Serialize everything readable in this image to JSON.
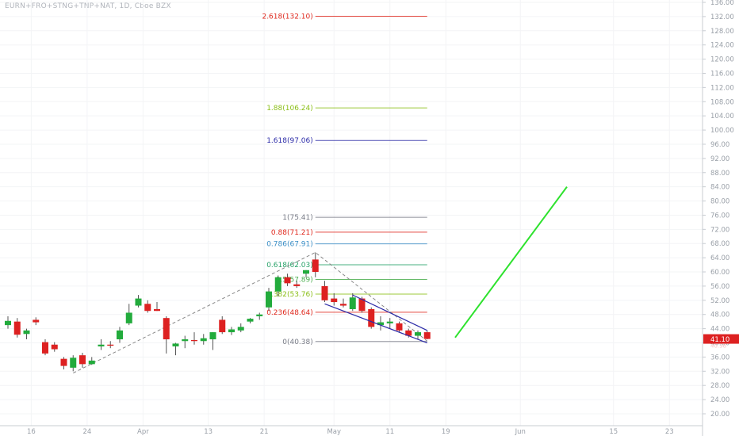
{
  "header": {
    "symbol": "EURN+FRO+STNG+TNP+NAT",
    "interval": "1D",
    "exchange": "Cboe BZX"
  },
  "colors": {
    "up": "#22ab3c",
    "down": "#dd2121",
    "wick": "#555555",
    "price_tag": "#dd2121",
    "projection": "#2ee22e",
    "channel": "#2c2ca8",
    "zigzag": "#888888",
    "axis_text": "#9aa0a8",
    "grid": "#f3f4f6"
  },
  "chart_data": {
    "type": "candlestick",
    "y_axis": {
      "position": "right",
      "range": [
        18,
        138
      ],
      "ticks": [
        20.0,
        24.0,
        28.0,
        32.0,
        36.0,
        40.0,
        44.0,
        48.0,
        52.0,
        56.0,
        60.0,
        64.0,
        68.0,
        72.0,
        76.0,
        80.0,
        84.0,
        88.0,
        92.0,
        96.0,
        100.0,
        104.0,
        108.0,
        112.0,
        116.0,
        120.0,
        124.0,
        128.0,
        132.0,
        136.0
      ]
    },
    "x_axis": {
      "ticks": [
        {
          "label": "16",
          "i": 2.5
        },
        {
          "label": "24",
          "i": 8.5
        },
        {
          "label": "Apr",
          "i": 14.5
        },
        {
          "label": "13",
          "i": 21.5
        },
        {
          "label": "21",
          "i": 27.5
        },
        {
          "label": "May",
          "i": 35
        },
        {
          "label": "11",
          "i": 41
        },
        {
          "label": "19",
          "i": 47
        },
        {
          "label": "Jun",
          "i": 55
        },
        {
          "label": "15",
          "i": 65
        },
        {
          "label": "23",
          "i": 71
        }
      ]
    },
    "candles": [
      {
        "o": 45.0,
        "h": 47.5,
        "l": 44.0,
        "c": 46.2
      },
      {
        "o": 46.0,
        "h": 47.0,
        "l": 41.5,
        "c": 42.3
      },
      {
        "o": 42.5,
        "h": 44.0,
        "l": 41.0,
        "c": 43.5
      },
      {
        "o": 46.5,
        "h": 47.2,
        "l": 45.0,
        "c": 45.8
      },
      {
        "o": 40.2,
        "h": 41.0,
        "l": 36.5,
        "c": 37.0
      },
      {
        "o": 39.5,
        "h": 40.2,
        "l": 37.5,
        "c": 38.2
      },
      {
        "o": 35.5,
        "h": 36.0,
        "l": 32.5,
        "c": 33.5
      },
      {
        "o": 33.0,
        "h": 36.5,
        "l": 32.0,
        "c": 35.8
      },
      {
        "o": 36.5,
        "h": 37.2,
        "l": 33.0,
        "c": 34.0
      },
      {
        "o": 34.0,
        "h": 36.0,
        "l": 33.8,
        "c": 35.0
      },
      {
        "o": 39.0,
        "h": 41.0,
        "l": 38.0,
        "c": 39.5
      },
      {
        "o": 39.5,
        "h": 40.5,
        "l": 38.5,
        "c": 39.2
      },
      {
        "o": 41.0,
        "h": 44.5,
        "l": 40.0,
        "c": 43.5
      },
      {
        "o": 45.5,
        "h": 51.0,
        "l": 45.0,
        "c": 48.5
      },
      {
        "o": 50.5,
        "h": 53.5,
        "l": 50.0,
        "c": 52.5
      },
      {
        "o": 51.0,
        "h": 52.0,
        "l": 48.5,
        "c": 49.0
      },
      {
        "o": 49.5,
        "h": 51.5,
        "l": 49.0,
        "c": 49.0
      },
      {
        "o": 47.0,
        "h": 47.5,
        "l": 37.0,
        "c": 41.0
      },
      {
        "o": 39.0,
        "h": 40.0,
        "l": 36.5,
        "c": 39.8
      },
      {
        "o": 40.5,
        "h": 42.0,
        "l": 38.5,
        "c": 41.0
      },
      {
        "o": 40.8,
        "h": 43.0,
        "l": 39.5,
        "c": 40.5
      },
      {
        "o": 40.5,
        "h": 42.5,
        "l": 39.5,
        "c": 41.3
      },
      {
        "o": 41.0,
        "h": 43.0,
        "l": 38.0,
        "c": 43.0
      },
      {
        "o": 46.5,
        "h": 47.5,
        "l": 42.5,
        "c": 43.0
      },
      {
        "o": 43.0,
        "h": 44.5,
        "l": 42.2,
        "c": 43.8
      },
      {
        "o": 43.5,
        "h": 45.5,
        "l": 43.0,
        "c": 44.5
      },
      {
        "o": 46.0,
        "h": 47.0,
        "l": 45.5,
        "c": 46.8
      },
      {
        "o": 47.5,
        "h": 48.5,
        "l": 46.5,
        "c": 48.0
      },
      {
        "o": 50.0,
        "h": 55.5,
        "l": 49.0,
        "c": 54.5
      },
      {
        "o": 54.5,
        "h": 59.0,
        "l": 53.0,
        "c": 58.5
      },
      {
        "o": 58.5,
        "h": 59.5,
        "l": 56.0,
        "c": 56.8
      },
      {
        "o": 56.5,
        "h": 57.5,
        "l": 55.5,
        "c": 56.0
      },
      {
        "o": 59.5,
        "h": 60.5,
        "l": 58.5,
        "c": 60.5
      },
      {
        "o": 63.5,
        "h": 65.5,
        "l": 58.5,
        "c": 60.0
      },
      {
        "o": 56.0,
        "h": 57.5,
        "l": 51.5,
        "c": 52.0
      },
      {
        "o": 52.5,
        "h": 54.0,
        "l": 50.5,
        "c": 51.5
      },
      {
        "o": 51.0,
        "h": 52.5,
        "l": 50.0,
        "c": 50.5
      },
      {
        "o": 49.5,
        "h": 54.0,
        "l": 49.0,
        "c": 52.8
      },
      {
        "o": 52.5,
        "h": 53.0,
        "l": 48.5,
        "c": 49.0
      },
      {
        "o": 49.5,
        "h": 50.0,
        "l": 44.0,
        "c": 44.5
      },
      {
        "o": 45.0,
        "h": 47.5,
        "l": 43.5,
        "c": 45.8
      },
      {
        "o": 45.5,
        "h": 47.0,
        "l": 44.0,
        "c": 46.0
      },
      {
        "o": 45.5,
        "h": 46.0,
        "l": 43.0,
        "c": 43.5
      },
      {
        "o": 43.5,
        "h": 44.0,
        "l": 41.5,
        "c": 42.0
      },
      {
        "o": 42.0,
        "h": 43.5,
        "l": 41.0,
        "c": 43.0
      },
      {
        "o": 43.0,
        "h": 43.5,
        "l": 41.0,
        "c": 41.1
      }
    ],
    "fib_levels": [
      {
        "ratio": "0",
        "price": "40.38",
        "value": 40.38,
        "color": "#787b86"
      },
      {
        "ratio": "0.236",
        "price": "48.64",
        "value": 48.64,
        "color": "#e0291e"
      },
      {
        "ratio": "0.382",
        "price": "53.76",
        "value": 53.76,
        "color": "#8bbf18"
      },
      {
        "ratio": "0.5",
        "price": "57.89",
        "value": 57.89,
        "color": "#4caf50"
      },
      {
        "ratio": "0.618",
        "price": "62.03",
        "value": 62.03,
        "color": "#2aa36a"
      },
      {
        "ratio": "0.786",
        "price": "67.91",
        "value": 67.91,
        "color": "#3b8fc7"
      },
      {
        "ratio": "0.88",
        "price": "71.21",
        "value": 71.21,
        "color": "#e0291e"
      },
      {
        "ratio": "1",
        "price": "75.41",
        "value": 75.41,
        "color": "#787b86"
      },
      {
        "ratio": "1.618",
        "price": "97.06",
        "value": 97.06,
        "color": "#2c2ca8"
      },
      {
        "ratio": "1.88",
        "price": "106.24",
        "value": 106.24,
        "color": "#8bbf18"
      },
      {
        "ratio": "2.618",
        "price": "132.10",
        "value": 132.1,
        "color": "#e0291e"
      }
    ],
    "fib_range": {
      "from_i": 33,
      "to_i": 45
    },
    "zigzag": [
      {
        "i": 7,
        "v": 31.5
      },
      {
        "i": 33,
        "v": 65.5
      },
      {
        "i": 45,
        "v": 40.5
      }
    ],
    "channel": {
      "upper": [
        {
          "i": 37,
          "v": 53.5
        },
        {
          "i": 45,
          "v": 43.5
        }
      ],
      "lower": [
        {
          "i": 34,
          "v": 51.0
        },
        {
          "i": 45,
          "v": 40.0
        }
      ]
    },
    "projection": [
      {
        "i": 48,
        "v": 41.5
      },
      {
        "i": 60,
        "v": 84.0
      }
    ],
    "last_price": {
      "label": "41.10",
      "value": 41.1,
      "sub_label": "40.38"
    }
  }
}
